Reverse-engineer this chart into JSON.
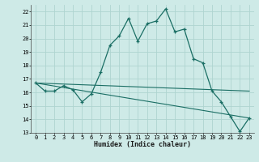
{
  "xlabel": "Humidex (Indice chaleur)",
  "ylabel": "",
  "bg_color": "#ceeae7",
  "grid_color": "#aed4d0",
  "line_color": "#1a6e64",
  "xlim": [
    -0.5,
    23.5
  ],
  "ylim": [
    13,
    22.5
  ],
  "xticks": [
    0,
    1,
    2,
    3,
    4,
    5,
    6,
    7,
    8,
    9,
    10,
    11,
    12,
    13,
    14,
    15,
    16,
    17,
    18,
    19,
    20,
    21,
    22,
    23
  ],
  "yticks": [
    13,
    14,
    15,
    16,
    17,
    18,
    19,
    20,
    21,
    22
  ],
  "curve1_x": [
    0,
    1,
    2,
    3,
    4,
    5,
    6,
    7,
    8,
    9,
    10,
    11,
    12,
    13,
    14,
    15,
    16,
    17,
    18,
    19,
    20,
    21,
    22,
    23
  ],
  "curve1_y": [
    16.7,
    16.1,
    16.1,
    16.5,
    16.2,
    15.3,
    15.9,
    17.5,
    19.5,
    20.2,
    21.5,
    19.8,
    21.1,
    21.3,
    22.2,
    20.5,
    20.7,
    18.5,
    18.2,
    16.1,
    15.3,
    14.2,
    13.1,
    14.1
  ],
  "curve2_x": [
    0,
    23
  ],
  "curve2_y": [
    16.7,
    16.1
  ],
  "curve3_x": [
    0,
    23
  ],
  "curve3_y": [
    16.7,
    14.1
  ],
  "tick_fontsize": 5.0,
  "xlabel_fontsize": 6.0
}
